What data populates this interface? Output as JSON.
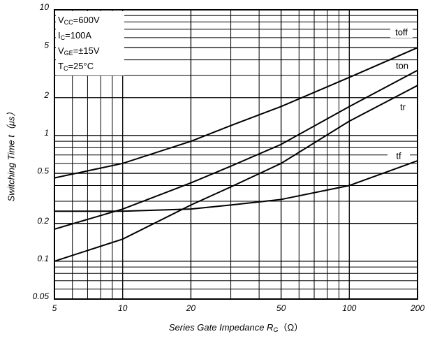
{
  "chart_data": {
    "type": "line",
    "ylabel": {
      "text": "Switching Time t（μs）"
    },
    "xlabel": {
      "text": "Series Gate Impedance R",
      "sub": "G",
      "unit": "（Ω）"
    },
    "conditions": [
      {
        "symbol": "V",
        "sub": "CC",
        "value": "=600V"
      },
      {
        "symbol": "I",
        "sub": "C",
        "value": "=100A"
      },
      {
        "symbol": "V",
        "sub": "GE",
        "value": "=±15V"
      },
      {
        "symbol": "T",
        "sub": "C",
        "value": "=25°C"
      }
    ],
    "x": [
      5,
      10,
      20,
      30,
      50,
      100,
      200
    ],
    "series": [
      {
        "name": "toff",
        "color": "#000000",
        "values": [
          0.46,
          0.6,
          0.9,
          1.2,
          1.7,
          2.9,
          5.0
        ]
      },
      {
        "name": "ton",
        "color": "#000000",
        "values": [
          0.18,
          0.26,
          0.42,
          0.57,
          0.85,
          1.7,
          3.3
        ]
      },
      {
        "name": "tr",
        "color": "#000000",
        "values": [
          0.1,
          0.15,
          0.28,
          0.39,
          0.6,
          1.3,
          2.5
        ]
      },
      {
        "name": "tf",
        "color": "#000000",
        "values": [
          0.25,
          0.25,
          0.26,
          0.28,
          0.31,
          0.4,
          0.63
        ]
      }
    ],
    "xlog": true,
    "ylog": true,
    "xlim": [
      5,
      200
    ],
    "ylim": [
      0.05,
      10
    ],
    "xticks": [
      5,
      10,
      20,
      50,
      100,
      200
    ],
    "xminor": [
      6,
      7,
      8,
      9,
      30,
      40,
      60,
      70,
      80,
      90
    ],
    "yticks": [
      0.05,
      0.1,
      0.2,
      0.5,
      1,
      2,
      5,
      10
    ],
    "yminor": [
      0.06,
      0.07,
      0.08,
      0.09,
      0.3,
      0.4,
      0.6,
      0.7,
      0.8,
      0.9,
      3,
      4,
      6,
      7,
      8,
      9
    ],
    "grid": true
  }
}
